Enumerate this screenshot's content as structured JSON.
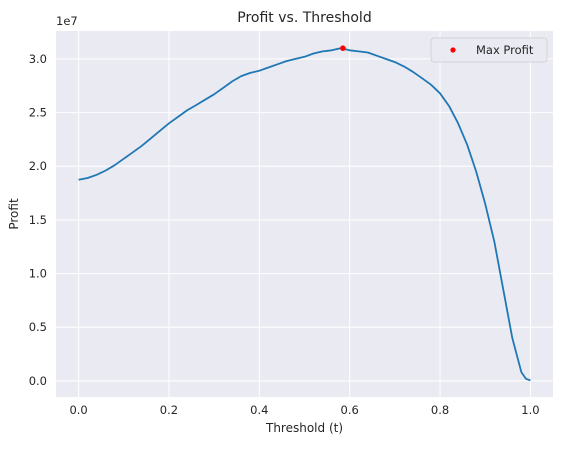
{
  "chart_data": {
    "type": "line",
    "title": "Profit vs. Threshold",
    "xlabel": "Threshold (t)",
    "ylabel": "Profit",
    "y_offset_label": "1e7",
    "xlim": [
      -0.05,
      1.05
    ],
    "ylim": [
      -0.15,
      3.26
    ],
    "xticks": [
      0.0,
      0.2,
      0.4,
      0.6,
      0.8,
      1.0
    ],
    "xtick_labels": [
      "0.0",
      "0.2",
      "0.4",
      "0.6",
      "0.8",
      "1.0"
    ],
    "yticks": [
      0.0,
      0.5,
      1.0,
      1.5,
      2.0,
      2.5,
      3.0
    ],
    "ytick_labels": [
      "0.0",
      "0.5",
      "1.0",
      "1.5",
      "2.0",
      "2.5",
      "3.0"
    ],
    "grid": true,
    "legend_position": "top-right",
    "colors": {
      "line": "#1f77b4",
      "marker": "#ff0000",
      "background": "#eaeaf2",
      "grid": "#ffffff"
    },
    "series": [
      {
        "x": [
          0.0,
          0.02,
          0.04,
          0.06,
          0.08,
          0.1,
          0.12,
          0.14,
          0.16,
          0.18,
          0.2,
          0.22,
          0.24,
          0.26,
          0.28,
          0.3,
          0.32,
          0.34,
          0.36,
          0.38,
          0.4,
          0.42,
          0.44,
          0.46,
          0.48,
          0.5,
          0.52,
          0.54,
          0.56,
          0.58,
          0.6,
          0.62,
          0.64,
          0.66,
          0.68,
          0.7,
          0.72,
          0.74,
          0.76,
          0.78,
          0.8,
          0.82,
          0.84,
          0.86,
          0.88,
          0.9,
          0.92,
          0.94,
          0.96,
          0.98,
          0.99,
          1.0
        ],
        "y": [
          1.875,
          1.89,
          1.92,
          1.96,
          2.01,
          2.07,
          2.13,
          2.19,
          2.26,
          2.33,
          2.4,
          2.46,
          2.52,
          2.57,
          2.62,
          2.67,
          2.73,
          2.79,
          2.84,
          2.87,
          2.89,
          2.92,
          2.95,
          2.98,
          3.0,
          3.02,
          3.05,
          3.07,
          3.08,
          3.1,
          3.08,
          3.07,
          3.06,
          3.03,
          3.0,
          2.97,
          2.93,
          2.88,
          2.82,
          2.76,
          2.68,
          2.56,
          2.4,
          2.2,
          1.95,
          1.65,
          1.3,
          0.85,
          0.4,
          0.08,
          0.02,
          0.005
        ]
      }
    ],
    "markers": [
      {
        "name": "Max Profit",
        "x": 0.585,
        "y": 3.1
      }
    ]
  }
}
